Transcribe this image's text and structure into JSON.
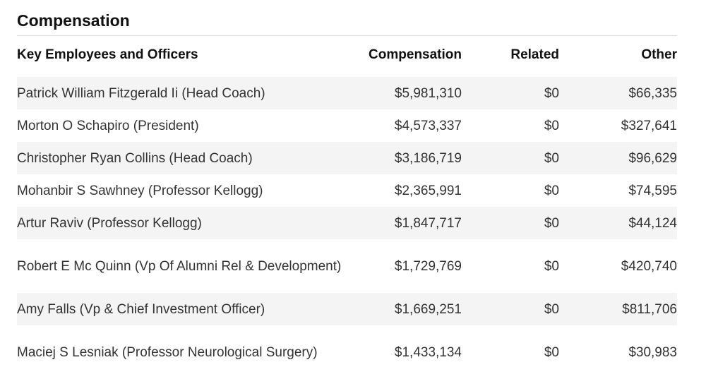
{
  "section": {
    "title": "Compensation"
  },
  "table": {
    "headers": {
      "name": "Key Employees and Officers",
      "compensation": "Compensation",
      "related": "Related",
      "other": "Other"
    },
    "rows": [
      {
        "name": "Patrick William Fitzgerald Ii (Head Coach)",
        "compensation": "$5,981,310",
        "related": "$0",
        "other": "$66,335"
      },
      {
        "name": "Morton O Schapiro (President)",
        "compensation": "$4,573,337",
        "related": "$0",
        "other": "$327,641"
      },
      {
        "name": "Christopher Ryan Collins (Head Coach)",
        "compensation": "$3,186,719",
        "related": "$0",
        "other": "$96,629"
      },
      {
        "name": "Mohanbir S Sawhney (Professor Kellogg)",
        "compensation": "$2,365,991",
        "related": "$0",
        "other": "$74,595"
      },
      {
        "name": "Artur Raviv (Professor Kellogg)",
        "compensation": "$1,847,717",
        "related": "$0",
        "other": "$44,124"
      },
      {
        "name": "Robert E Mc Quinn (Vp Of Alumni Rel & Development)",
        "compensation": "$1,729,769",
        "related": "$0",
        "other": "$420,740"
      },
      {
        "name": "Amy Falls (Vp & Chief Investment Officer)",
        "compensation": "$1,669,251",
        "related": "$0",
        "other": "$811,706"
      },
      {
        "name": "Maciej S Lesniak (Professor Neurological Surgery)",
        "compensation": "$1,433,134",
        "related": "$0",
        "other": "$30,983"
      }
    ]
  }
}
